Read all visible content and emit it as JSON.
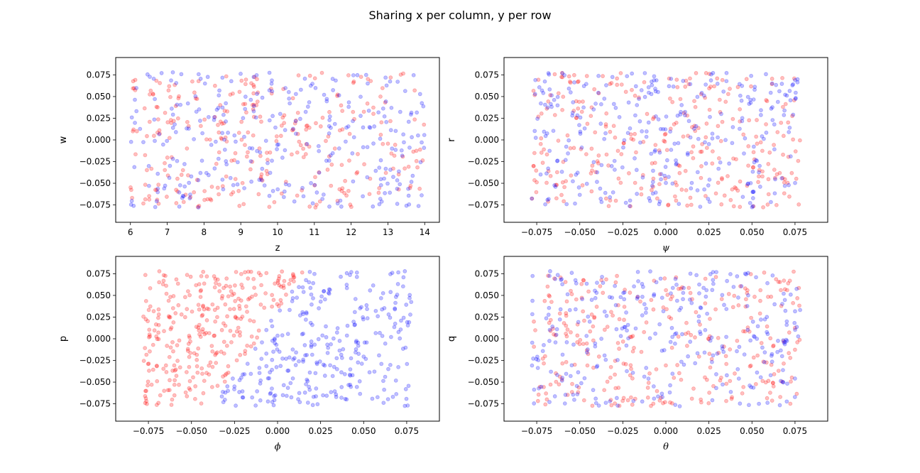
{
  "figure": {
    "suptitle": "Sharing x per column, y per row",
    "colors": {
      "red": "#ff0000",
      "blue": "#0000ff"
    },
    "marker_alpha": 0.25
  },
  "chart_data": [
    {
      "type": "scatter",
      "xlabel": "z",
      "xlabel_math": false,
      "ylabel": "w",
      "xlim": [
        5.6,
        14.4
      ],
      "ylim": [
        -0.095,
        0.095
      ],
      "xticks": [
        6,
        7,
        8,
        9,
        10,
        11,
        12,
        13,
        14
      ],
      "xtick_labels": [
        "6",
        "7",
        "8",
        "9",
        "10",
        "11",
        "12",
        "13",
        "14"
      ],
      "yticks": [
        -0.075,
        -0.05,
        -0.025,
        0,
        0.025,
        0.05,
        0.075
      ],
      "ytick_labels": [
        "−0.075",
        "−0.050",
        "−0.025",
        "0.000",
        "0.025",
        "0.050",
        "0.075"
      ],
      "x_data_range": [
        6,
        14
      ],
      "y_data_range": [
        -0.078,
        0.078
      ],
      "points_per_series": 300,
      "pattern": "uniform",
      "seed": 11
    },
    {
      "type": "scatter",
      "xlabel": "ψ",
      "xlabel_math": true,
      "ylabel": "r",
      "xlim": [
        -0.094,
        0.094
      ],
      "ylim": [
        -0.095,
        0.095
      ],
      "xticks": [
        -0.075,
        -0.05,
        -0.025,
        0,
        0.025,
        0.05,
        0.075
      ],
      "xtick_labels": [
        "−0.075",
        "−0.050",
        "−0.025",
        "0.000",
        "0.025",
        "0.050",
        "0.075"
      ],
      "yticks": [
        -0.075,
        -0.05,
        -0.025,
        0,
        0.025,
        0.05,
        0.075
      ],
      "ytick_labels": [
        "−0.075",
        "−0.050",
        "−0.025",
        "0.000",
        "0.025",
        "0.050",
        "0.075"
      ],
      "x_data_range": [
        -0.078,
        0.078
      ],
      "y_data_range": [
        -0.078,
        0.078
      ],
      "points_per_series": 300,
      "pattern": "uniform",
      "seed": 23
    },
    {
      "type": "scatter",
      "xlabel": "ϕ",
      "xlabel_math": true,
      "ylabel": "p",
      "xlim": [
        -0.094,
        0.094
      ],
      "ylim": [
        -0.095,
        0.095
      ],
      "xticks": [
        -0.075,
        -0.05,
        -0.025,
        0,
        0.025,
        0.05,
        0.075
      ],
      "xtick_labels": [
        "−0.075",
        "−0.050",
        "−0.025",
        "0.000",
        "0.025",
        "0.050",
        "0.075"
      ],
      "yticks": [
        -0.075,
        -0.05,
        -0.025,
        0,
        0.025,
        0.05,
        0.075
      ],
      "ytick_labels": [
        "−0.075",
        "−0.050",
        "−0.025",
        "0.000",
        "0.025",
        "0.050",
        "0.075"
      ],
      "x_data_range": [
        -0.078,
        0.078
      ],
      "y_data_range": [
        -0.078,
        0.078
      ],
      "points_per_series": 300,
      "pattern": "diagonal-split",
      "seed": 37
    },
    {
      "type": "scatter",
      "xlabel": "θ",
      "xlabel_math": true,
      "ylabel": "q",
      "xlim": [
        -0.094,
        0.094
      ],
      "ylim": [
        -0.095,
        0.095
      ],
      "xticks": [
        -0.075,
        -0.05,
        -0.025,
        0,
        0.025,
        0.05,
        0.075
      ],
      "xtick_labels": [
        "−0.075",
        "−0.050",
        "−0.025",
        "0.000",
        "0.025",
        "0.050",
        "0.075"
      ],
      "yticks": [
        -0.075,
        -0.05,
        -0.025,
        0,
        0.025,
        0.05,
        0.075
      ],
      "ytick_labels": [
        "−0.075",
        "−0.050",
        "−0.025",
        "0.000",
        "0.025",
        "0.050",
        "0.075"
      ],
      "x_data_range": [
        -0.078,
        0.078
      ],
      "y_data_range": [
        -0.078,
        0.078
      ],
      "points_per_series": 300,
      "pattern": "uniform",
      "seed": 53
    }
  ]
}
